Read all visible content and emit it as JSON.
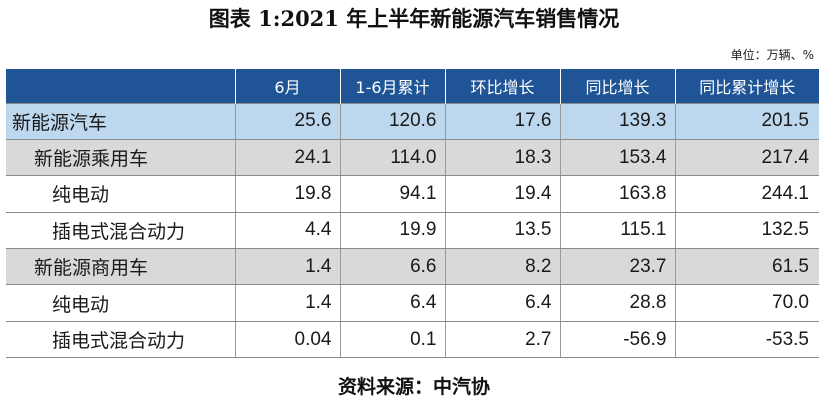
{
  "title": "图表 1:2021 年上半年新能源汽车销售情况",
  "unit_note": "单位：万辆、%",
  "table": {
    "headers": [
      "",
      "6月",
      "1-6月累计",
      "环比增长",
      "同比增长",
      "同比累计增长"
    ],
    "rows": [
      {
        "level": 0,
        "label": "新能源汽车",
        "values": [
          "25.6",
          "120.6",
          "17.6",
          "139.3",
          "201.5"
        ]
      },
      {
        "level": 1,
        "label": "新能源乘用车",
        "values": [
          "24.1",
          "114.0",
          "18.3",
          "153.4",
          "217.4"
        ]
      },
      {
        "level": 2,
        "label": "纯电动",
        "values": [
          "19.8",
          "94.1",
          "19.4",
          "163.8",
          "244.1"
        ]
      },
      {
        "level": 2,
        "label": "插电式混合动力",
        "values": [
          "4.4",
          "19.9",
          "13.5",
          "115.1",
          "132.5"
        ]
      },
      {
        "level": 1,
        "label": "新能源商用车",
        "values": [
          "1.4",
          "6.6",
          "8.2",
          "23.7",
          "61.5"
        ]
      },
      {
        "level": 2,
        "label": "纯电动",
        "values": [
          "1.4",
          "6.4",
          "6.4",
          "28.8",
          "70.0"
        ]
      },
      {
        "level": 2,
        "label": "插电式混合动力",
        "values": [
          "0.04",
          "0.1",
          "2.7",
          "-56.9",
          "-53.5"
        ]
      }
    ]
  },
  "source": "资料来源：中汽协",
  "colors": {
    "header_bg": "#1f5597",
    "total_row_bg": "#bdd7ee",
    "subtotal_row_bg": "#d9d9d9"
  }
}
